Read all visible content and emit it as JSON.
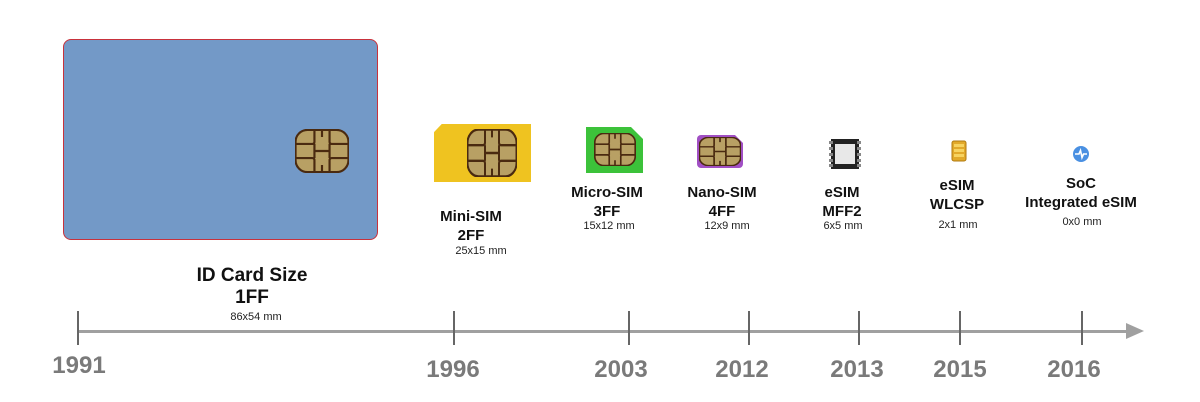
{
  "items": [
    {
      "line1": "ID Card Size",
      "line2": "1FF",
      "size": "86x54 mm",
      "year": "1991"
    },
    {
      "line1": "Mini-SIM",
      "line2": "2FF",
      "size": "25x15 mm",
      "year": "1996"
    },
    {
      "line1": "Micro-SIM",
      "line2": "3FF",
      "size": "15x12 mm",
      "year": "2003"
    },
    {
      "line1": "Nano-SIM",
      "line2": "4FF",
      "size": "12x9 mm",
      "year": "2012"
    },
    {
      "line1": "eSIM",
      "line2": "MFF2",
      "size": "6x5 mm",
      "year": "2013"
    },
    {
      "line1": "eSIM",
      "line2": "WLCSP",
      "size": "2x1 mm",
      "year": "2015"
    },
    {
      "line1": "SoC",
      "line2": "Integrated eSIM",
      "size": "0x0 mm",
      "year": "2016"
    }
  ],
  "colors": {
    "id_card": "#7399c7",
    "mini_sim": "#efc320",
    "micro_sim": "#3cc23a",
    "nano_sim": "#a14fc4",
    "chip_contact": "#b8a064",
    "axis": "#a0a0a0",
    "year_text": "#7a7a7a"
  },
  "icons": [
    "sim-chip-icon",
    "esim-mff2-icon",
    "esim-wlcsp-icon",
    "soc-integrated-icon"
  ]
}
